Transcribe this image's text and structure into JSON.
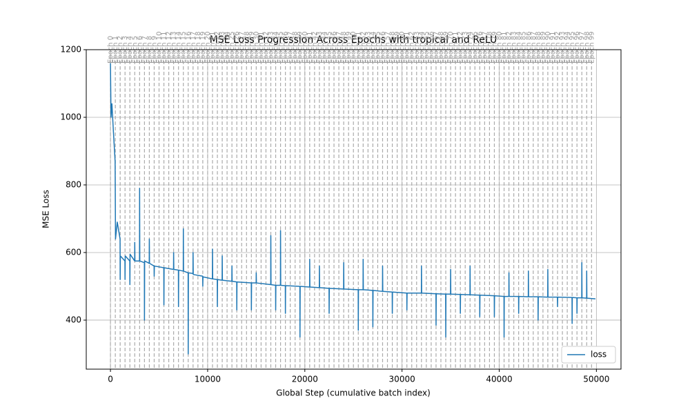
{
  "chart_data": {
    "type": "line",
    "title": "MSE Loss Progression Across Epochs with tropical and ReLU",
    "x_label": "Global Step (cumulative batch index)",
    "y_label": "MSE Loss",
    "xlim": [
      -2490,
      52530
    ],
    "ylim": [
      255,
      1200
    ],
    "xticks": [
      0,
      10000,
      20000,
      30000,
      40000,
      50000
    ],
    "yticks": [
      400,
      600,
      800,
      1000,
      1200
    ],
    "grid": true,
    "legend": "lower right",
    "x": [
      0,
      60,
      150,
      300,
      480,
      520,
      700,
      990,
      1000,
      1020,
      1490,
      1500,
      1520,
      1990,
      2000,
      2020,
      2490,
      2500,
      2520,
      2990,
      3000,
      3020,
      3490,
      3500,
      3520,
      3990,
      4000,
      4020,
      4490,
      4500,
      4520,
      5490,
      5500,
      5520,
      6490,
      6500,
      6520,
      6990,
      7000,
      7020,
      7490,
      7500,
      7520,
      7990,
      8000,
      8020,
      8490,
      8500,
      8520,
      9490,
      9500,
      9520,
      10490,
      10500,
      10520,
      10990,
      11000,
      11020,
      11490,
      11500,
      11520,
      12490,
      12500,
      12520,
      12990,
      13000,
      13020,
      14490,
      14500,
      14520,
      14990,
      15000,
      15020,
      16490,
      16500,
      16520,
      16990,
      17000,
      17020,
      17490,
      17500,
      17520,
      17990,
      18000,
      18020,
      19490,
      19500,
      19520,
      20490,
      20500,
      20520,
      21490,
      21500,
      21520,
      22490,
      22500,
      22520,
      23990,
      24000,
      24020,
      25490,
      25500,
      25520,
      25990,
      26000,
      26020,
      26990,
      27000,
      27020,
      27990,
      28000,
      28020,
      28990,
      29000,
      29020,
      30490,
      30500,
      30520,
      31990,
      32000,
      32020,
      33490,
      33500,
      33520,
      34490,
      34500,
      34520,
      34990,
      35000,
      35020,
      35990,
      36000,
      36020,
      36990,
      37000,
      37020,
      37990,
      38000,
      38020,
      39490,
      39500,
      39520,
      40490,
      40500,
      40520,
      40990,
      41000,
      41020,
      41990,
      42000,
      42020,
      42990,
      43000,
      43020,
      43990,
      44000,
      44020,
      44990,
      45000,
      45020,
      45990,
      46000,
      46020,
      47490,
      47500,
      47520,
      47990,
      48000,
      48020,
      48490,
      48500,
      48520,
      48990,
      49000,
      49020,
      49900
    ],
    "series": [
      {
        "name": "loss",
        "color": "#1f77b4",
        "values": [
          1160,
          1000,
          1040,
          960,
          870,
          640,
          690,
          640,
          520,
          590,
          575,
          520,
          590,
          575,
          505,
          595,
          575,
          630,
          575,
          575,
          790,
          575,
          570,
          400,
          575,
          568,
          640,
          568,
          560,
          530,
          560,
          555,
          445,
          555,
          550,
          600,
          550,
          548,
          440,
          548,
          545,
          670,
          545,
          540,
          300,
          540,
          538,
          600,
          535,
          530,
          500,
          528,
          522,
          610,
          522,
          520,
          440,
          520,
          518,
          590,
          518,
          515,
          560,
          515,
          513,
          430,
          513,
          510,
          430,
          510,
          510,
          540,
          510,
          505,
          650,
          505,
          503,
          430,
          503,
          503,
          665,
          503,
          502,
          420,
          502,
          500,
          350,
          500,
          498,
          580,
          498,
          496,
          560,
          496,
          494,
          420,
          494,
          492,
          570,
          492,
          490,
          370,
          490,
          490,
          580,
          490,
          488,
          380,
          488,
          485,
          560,
          485,
          483,
          420,
          483,
          480,
          430,
          480,
          480,
          560,
          480,
          478,
          385,
          478,
          477,
          350,
          477,
          477,
          550,
          477,
          476,
          420,
          476,
          475,
          560,
          475,
          474,
          410,
          474,
          472,
          410,
          472,
          470,
          350,
          470,
          470,
          540,
          470,
          470,
          420,
          470,
          469,
          545,
          469,
          469,
          400,
          469,
          468,
          550,
          468,
          468,
          440,
          468,
          467,
          390,
          467,
          466,
          420,
          466,
          466,
          570,
          466,
          465,
          545,
          465,
          463
        ]
      }
    ],
    "epoch_lines": {
      "color": "#aaaaaa",
      "x": [
        0,
        500,
        1000,
        1500,
        2000,
        2500,
        3000,
        3500,
        4000,
        4500,
        5000,
        5500,
        6000,
        6500,
        7000,
        7500,
        8000,
        8500,
        9000,
        9500,
        10000,
        10500,
        11000,
        11500,
        12000,
        12500,
        13000,
        13500,
        14000,
        14500,
        15000,
        15500,
        16000,
        16500,
        17000,
        17500,
        18000,
        18500,
        19000,
        19500,
        20000,
        20500,
        21000,
        21500,
        22000,
        22500,
        23000,
        23500,
        24000,
        24500,
        25000,
        25500,
        26000,
        26500,
        27000,
        27500,
        28000,
        28500,
        29000,
        29500,
        30000,
        30500,
        31000,
        31500,
        32000,
        32500,
        33000,
        33500,
        34000,
        34500,
        35000,
        35500,
        36000,
        36500,
        37000,
        37500,
        38000,
        38500,
        39000,
        39500,
        40000,
        40500,
        41000,
        41500,
        42000,
        42500,
        43000,
        43500,
        44000,
        44500,
        45000,
        45500,
        46000,
        46500,
        47000,
        47500,
        48000,
        48500,
        49000,
        49500
      ],
      "labels": [
        "Epoch 0",
        "Epoch 1",
        "Epoch 2",
        "Epoch 3",
        "Epoch 4",
        "Epoch 5",
        "Epoch 6",
        "Epoch 7",
        "Epoch 8",
        "Epoch 9",
        "Epoch 10",
        "Epoch 11",
        "Epoch 12",
        "Epoch 13",
        "Epoch 14",
        "Epoch 15",
        "Epoch 16",
        "Epoch 17",
        "Epoch 18",
        "Epoch 19",
        "Epoch 20",
        "Epoch 21",
        "Epoch 22",
        "Epoch 23",
        "Epoch 24",
        "Epoch 25",
        "Epoch 26",
        "Epoch 27",
        "Epoch 28",
        "Epoch 29",
        "Epoch 30",
        "Epoch 31",
        "Epoch 32",
        "Epoch 33",
        "Epoch 34",
        "Epoch 35",
        "Epoch 36",
        "Epoch 37",
        "Epoch 38",
        "Epoch 39",
        "Epoch 40",
        "Epoch 41",
        "Epoch 42",
        "Epoch 43",
        "Epoch 44",
        "Epoch 45",
        "Epoch 46",
        "Epoch 47",
        "Epoch 48",
        "Epoch 49",
        "Epoch 50",
        "Epoch 51",
        "Epoch 52",
        "Epoch 53",
        "Epoch 54",
        "Epoch 55",
        "Epoch 56",
        "Epoch 57",
        "Epoch 58",
        "Epoch 59",
        "Epoch 60",
        "Epoch 61",
        "Epoch 62",
        "Epoch 63",
        "Epoch 64",
        "Epoch 65",
        "Epoch 66",
        "Epoch 67",
        "Epoch 68",
        "Epoch 69",
        "Epoch 70",
        "Epoch 71",
        "Epoch 72",
        "Epoch 73",
        "Epoch 74",
        "Epoch 75",
        "Epoch 76",
        "Epoch 77",
        "Epoch 78",
        "Epoch 79",
        "Epoch 80",
        "Epoch 81",
        "Epoch 82",
        "Epoch 83",
        "Epoch 84",
        "Epoch 85",
        "Epoch 86",
        "Epoch 87",
        "Epoch 88",
        "Epoch 89",
        "Epoch 90",
        "Epoch 91",
        "Epoch 92",
        "Epoch 93",
        "Epoch 94",
        "Epoch 95",
        "Epoch 96",
        "Epoch 97",
        "Epoch 98",
        "Epoch 99"
      ]
    }
  }
}
